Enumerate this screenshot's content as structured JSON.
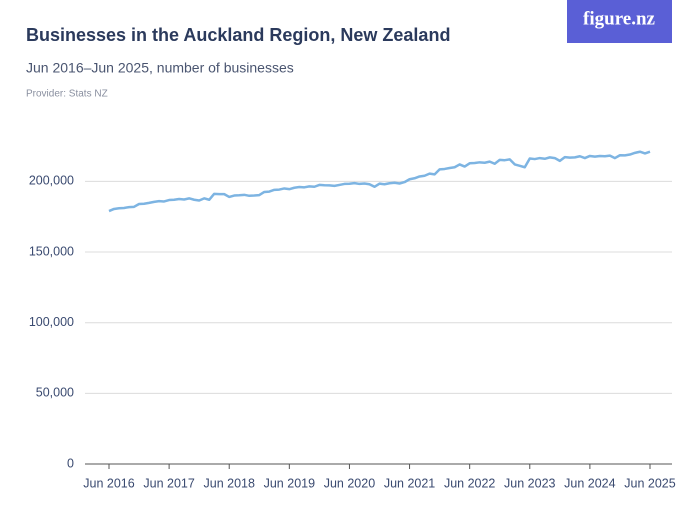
{
  "logo": "figure.nz",
  "chart_data": {
    "type": "line",
    "title": "Businesses in the Auckland Region, New Zealand",
    "subtitle": "Jun 2016–Jun 2025, number of businesses",
    "provider": "Provider: Stats NZ",
    "categories": [
      "Jun 2016",
      null,
      null,
      null,
      null,
      null,
      null,
      null,
      null,
      null,
      null,
      null,
      "Jun 2017",
      null,
      null,
      null,
      null,
      null,
      null,
      null,
      null,
      null,
      null,
      null,
      "Jun 2018",
      null,
      null,
      null,
      null,
      null,
      null,
      null,
      null,
      null,
      null,
      null,
      "Jun 2019",
      null,
      null,
      null,
      null,
      null,
      null,
      null,
      null,
      null,
      null,
      null,
      "Jun 2020",
      null,
      null,
      null,
      null,
      null,
      null,
      null,
      null,
      null,
      null,
      null,
      "Jun 2021",
      null,
      null,
      null,
      null,
      null,
      null,
      null,
      null,
      null,
      null,
      null,
      "Jun 2022",
      null,
      null,
      null,
      null,
      null,
      null,
      null,
      null,
      null,
      null,
      null,
      "Jun 2023",
      null,
      null,
      null,
      null,
      null,
      null,
      null,
      null,
      null,
      null,
      null,
      "Jun 2024",
      null,
      null,
      null,
      null,
      null,
      null,
      null,
      null,
      null,
      null,
      null,
      "Jun 2025"
    ],
    "values": [
      179000,
      180500,
      181000,
      181200,
      181800,
      182000,
      184000,
      184200,
      184800,
      185500,
      186000,
      185800,
      186800,
      187000,
      187500,
      187200,
      188000,
      187000,
      186500,
      188000,
      187000,
      191200,
      191000,
      191000,
      189000,
      190000,
      190200,
      190500,
      189800,
      190000,
      190300,
      192500,
      192800,
      194000,
      194200,
      195000,
      194500,
      195500,
      196000,
      195800,
      196500,
      196200,
      197500,
      197300,
      197200,
      196800,
      197500,
      198200,
      198300,
      198800,
      198200,
      198500,
      198000,
      196200,
      198400,
      198000,
      198700,
      199000,
      198500,
      199500,
      201500,
      202200,
      203500,
      204000,
      205500,
      205000,
      208500,
      208800,
      209500,
      210000,
      212000,
      210500,
      212800,
      213000,
      213500,
      213200,
      214000,
      212500,
      215200,
      215000,
      215600,
      212000,
      211000,
      210000,
      216200,
      215800,
      216500,
      216000,
      217000,
      216500,
      214500,
      217200,
      216800,
      217000,
      217800,
      216500,
      218000,
      217500,
      218000,
      217800,
      218200,
      216500,
      218500,
      218400,
      219000,
      220200,
      221000,
      219800,
      221000
    ],
    "color": "#7db4e2",
    "ylim": [
      0,
      230000
    ],
    "yticks": [
      0,
      {
        "value": 50000,
        "label": "50,000"
      },
      {
        "value": 100000,
        "label": "100,000"
      },
      {
        "value": 150000,
        "label": "150,000"
      },
      {
        "value": 200000,
        "label": "200,000"
      }
    ],
    "grid": true
  }
}
